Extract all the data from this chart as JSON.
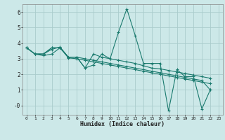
{
  "xlabel": "Humidex (Indice chaleur)",
  "background_color": "#cce8e8",
  "grid_color": "#aacccc",
  "line_color": "#1a7a6e",
  "xlim": [
    -0.5,
    23.5
  ],
  "ylim": [
    -0.6,
    6.5
  ],
  "xticks": [
    0,
    1,
    2,
    3,
    4,
    5,
    6,
    7,
    8,
    9,
    10,
    11,
    12,
    13,
    14,
    15,
    16,
    17,
    18,
    19,
    20,
    21,
    22,
    23
  ],
  "yticks": [
    0,
    1,
    2,
    3,
    4,
    5,
    6
  ],
  "ytick_labels": [
    "-0",
    "1",
    "2",
    "3",
    "4",
    "5",
    "6"
  ],
  "series": [
    [
      3.7,
      3.3,
      3.3,
      3.7,
      3.7,
      3.1,
      3.1,
      2.4,
      2.6,
      3.3,
      3.0,
      4.7,
      6.2,
      4.5,
      2.7,
      2.7,
      2.7,
      -0.35,
      2.3,
      1.85,
      1.85,
      -0.22,
      1.0
    ],
    [
      3.7,
      3.3,
      3.3,
      3.7,
      3.7,
      3.1,
      3.1,
      3.0,
      2.9,
      2.8,
      2.7,
      2.6,
      2.5,
      2.4,
      2.3,
      2.2,
      2.1,
      2.0,
      1.9,
      1.8,
      1.7,
      1.6,
      1.0
    ],
    [
      3.7,
      3.3,
      3.3,
      3.6,
      3.75,
      3.1,
      3.1,
      2.4,
      3.3,
      3.1,
      3.0,
      2.9,
      2.8,
      2.7,
      2.55,
      2.4,
      2.35,
      2.25,
      2.15,
      2.05,
      1.95,
      1.85,
      1.75
    ],
    [
      3.7,
      3.3,
      3.2,
      3.3,
      3.7,
      3.05,
      3.0,
      2.9,
      2.8,
      2.7,
      2.6,
      2.5,
      2.4,
      2.3,
      2.2,
      2.1,
      2.0,
      1.9,
      1.8,
      1.7,
      1.6,
      1.5,
      1.4
    ]
  ]
}
